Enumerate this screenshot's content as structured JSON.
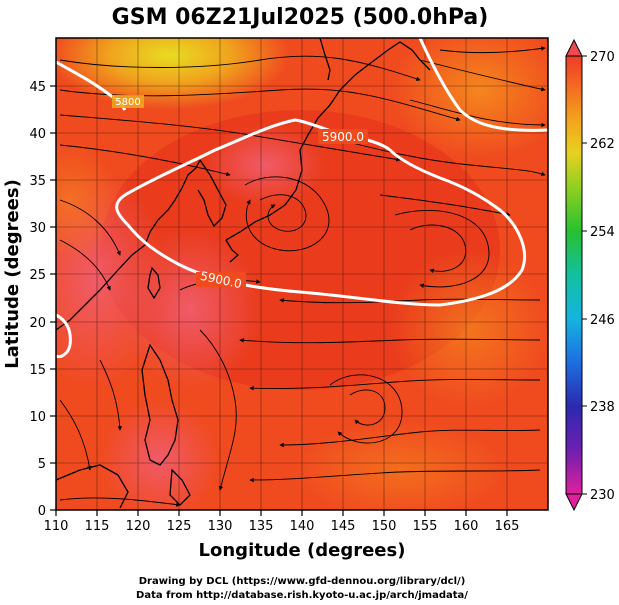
{
  "title": "GSM 06Z21Jul2025 (500.0hPa)",
  "x_axis": {
    "label": "Longitude (degrees)",
    "range": [
      110,
      170
    ],
    "ticks": [
      "110",
      "115",
      "120",
      "125",
      "130",
      "135",
      "140",
      "145",
      "150",
      "155",
      "160",
      "165"
    ]
  },
  "y_axis": {
    "label": "Latitude  (degrees)",
    "range": [
      0,
      50
    ],
    "ticks": [
      "0",
      "5",
      "10",
      "15",
      "20",
      "25",
      "30",
      "35",
      "40",
      "45"
    ]
  },
  "colorbar": {
    "range": [
      230,
      270
    ],
    "ticks": [
      "230",
      "238",
      "246",
      "254",
      "262",
      "270"
    ]
  },
  "contours": [
    {
      "value": "5900.0",
      "label": "5900.0"
    },
    {
      "value": "5900.0",
      "label": "5900.0"
    },
    {
      "value": "5800",
      "label": "5800"
    }
  ],
  "credits": {
    "line1": "Drawing by DCL (https://www.gfd-dennou.org/library/dcl/)",
    "line2": "Data from http://database.rish.kyoto-u.ac.jp/arch/jmadata/"
  },
  "colors": {
    "field_main": "#f04a1f",
    "field_dark": "#e2361c",
    "field_pink": "#ee4d5a",
    "field_orange": "#f47a1e",
    "field_yellow": "#e4d21d",
    "land_pink": "#f25f62",
    "contour": "#ffffff"
  },
  "map_data": {
    "region": "Western North Pacific / East Asia",
    "level_hPa": 500.0,
    "variable": "temperature (K) with wind streamlines and geopotential height contours"
  }
}
